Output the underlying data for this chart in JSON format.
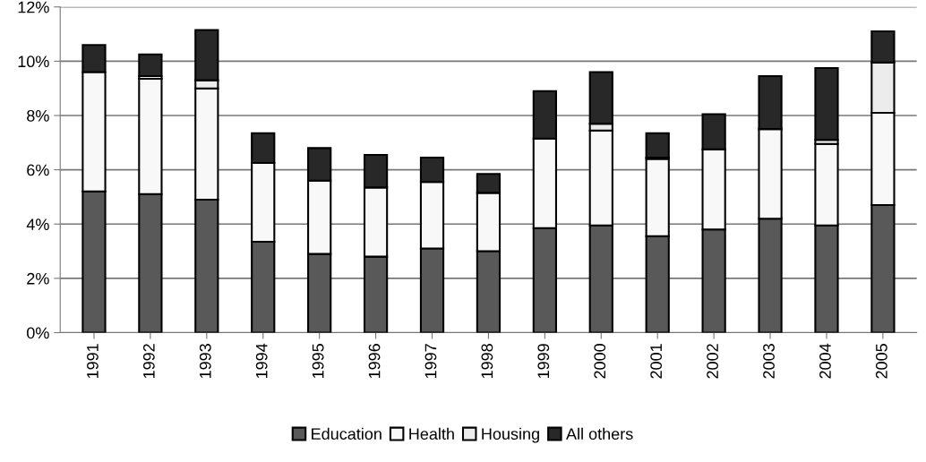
{
  "chart_data": {
    "type": "bar",
    "stacked": true,
    "categories": [
      "1991",
      "1992",
      "1993",
      "1994",
      "1995",
      "1996",
      "1997",
      "1998",
      "1999",
      "2000",
      "2001",
      "2002",
      "2003",
      "2004",
      "2005"
    ],
    "series": [
      {
        "name": "Education",
        "color": "#595959",
        "values": [
          5.2,
          5.1,
          4.9,
          3.35,
          2.9,
          2.8,
          3.1,
          3.0,
          3.85,
          3.95,
          3.55,
          3.8,
          4.2,
          3.95,
          4.7
        ]
      },
      {
        "name": "Health",
        "color": "#f8f8f8",
        "values": [
          4.4,
          4.25,
          4.1,
          2.9,
          2.7,
          2.55,
          2.45,
          2.15,
          3.3,
          3.5,
          2.85,
          2.95,
          3.3,
          3.0,
          3.4
        ]
      },
      {
        "name": "Housing",
        "color": "#ececec",
        "values": [
          null,
          0.1,
          0.3,
          null,
          null,
          null,
          null,
          null,
          null,
          0.25,
          0.05,
          null,
          null,
          0.15,
          1.85
        ]
      },
      {
        "name": "All others",
        "color": "#282828",
        "values": [
          1.0,
          0.8,
          1.85,
          1.1,
          1.2,
          1.2,
          0.9,
          0.7,
          1.75,
          1.9,
          0.9,
          1.3,
          1.95,
          2.65,
          1.15
        ]
      }
    ],
    "ylim": [
      0,
      12
    ],
    "yticks": [
      {
        "value": 0,
        "label": "0%"
      },
      {
        "value": 2,
        "label": "2%"
      },
      {
        "value": 4,
        "label": "4%"
      },
      {
        "value": 6,
        "label": "6%"
      },
      {
        "value": 8,
        "label": "8%"
      },
      {
        "value": 10,
        "label": "10%"
      },
      {
        "value": 12,
        "label": "12%"
      }
    ],
    "grid": "y",
    "legend": "bottom"
  }
}
